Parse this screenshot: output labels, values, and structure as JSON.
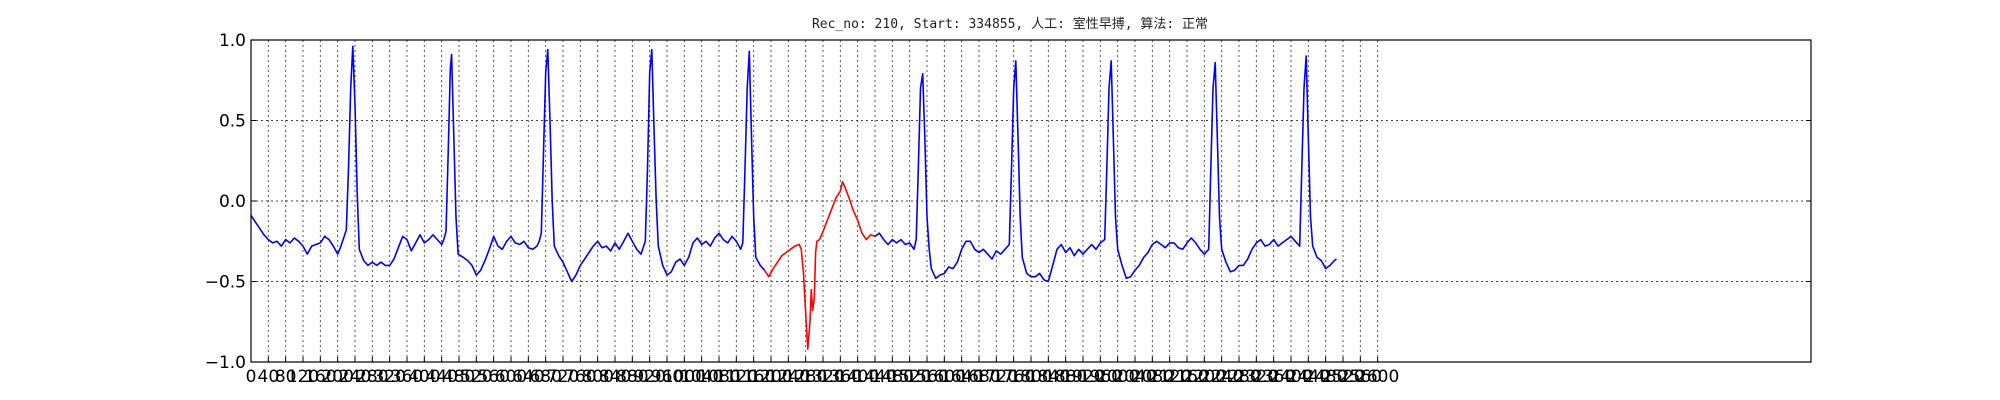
{
  "chart_data": {
    "type": "line",
    "title": "Rec_no: 210, Start: 334855, 人工: 室性早搏, 算法: 正常",
    "xlabel": "",
    "ylabel": "",
    "xlim": [
      0,
      3600
    ],
    "ylim": [
      -1.0,
      1.0
    ],
    "grid": true,
    "legend": "none",
    "y_ticks": [
      -1.0,
      -0.5,
      0.0,
      0.5,
      1.0
    ],
    "y_tick_labels": [
      "−1.0",
      "−0.5",
      "0.0",
      "0.5",
      "1.0"
    ],
    "x_tick_step": 40,
    "x_tick_last": 2600,
    "x_tick_labels_shown": [
      "0",
      "40",
      "80",
      "120",
      "160",
      "200",
      "240",
      "280",
      "320",
      "360",
      "400",
      "440",
      "480",
      "520",
      "560",
      "600",
      "640",
      "680",
      "720",
      "760",
      "800",
      "840",
      "880",
      "920",
      "960",
      "1000",
      "1040",
      "1080",
      "1120",
      "1160",
      "1200",
      "1240",
      "1280",
      "1320",
      "1360",
      "1400",
      "1440",
      "1480",
      "1520",
      "1560",
      "1600",
      "1640",
      "1680",
      "1720",
      "1760",
      "1800",
      "1840",
      "1880",
      "1920",
      "1960",
      "2000",
      "2040",
      "2080",
      "2120",
      "2160",
      "2200",
      "2240",
      "2280",
      "2320",
      "2360",
      "2400",
      "2440",
      "2480",
      "2520",
      "2560",
      "2600"
    ],
    "colors": {
      "normal": "#0000ff",
      "highlight": "#ff0000"
    },
    "series": [
      {
        "color": "#0000ff",
        "points": [
          [
            0,
            -0.09
          ],
          [
            10,
            -0.13
          ],
          [
            20,
            -0.17
          ],
          [
            30,
            -0.21
          ],
          [
            40,
            -0.24
          ],
          [
            50,
            -0.26
          ],
          [
            60,
            -0.25
          ],
          [
            70,
            -0.28
          ],
          [
            80,
            -0.24
          ],
          [
            90,
            -0.26
          ],
          [
            100,
            -0.23
          ],
          [
            110,
            -0.25
          ],
          [
            120,
            -0.28
          ],
          [
            130,
            -0.33
          ],
          [
            140,
            -0.28
          ],
          [
            150,
            -0.27
          ],
          [
            160,
            -0.26
          ],
          [
            170,
            -0.22
          ],
          [
            180,
            -0.24
          ],
          [
            190,
            -0.28
          ],
          [
            200,
            -0.33
          ],
          [
            205,
            -0.3
          ],
          [
            210,
            -0.26
          ],
          [
            215,
            -0.22
          ],
          [
            220,
            -0.18
          ],
          [
            225,
            0.2
          ],
          [
            230,
            0.7
          ],
          [
            235,
            0.96
          ],
          [
            240,
            0.6
          ],
          [
            245,
            0.05
          ],
          [
            250,
            -0.3
          ],
          [
            260,
            -0.37
          ],
          [
            270,
            -0.4
          ],
          [
            280,
            -0.38
          ],
          [
            290,
            -0.4
          ],
          [
            300,
            -0.38
          ],
          [
            310,
            -0.4
          ],
          [
            320,
            -0.4
          ],
          [
            330,
            -0.36
          ],
          [
            340,
            -0.29
          ],
          [
            350,
            -0.22
          ],
          [
            360,
            -0.24
          ],
          [
            370,
            -0.31
          ],
          [
            380,
            -0.26
          ],
          [
            390,
            -0.21
          ],
          [
            400,
            -0.26
          ],
          [
            410,
            -0.24
          ],
          [
            420,
            -0.21
          ],
          [
            430,
            -0.24
          ],
          [
            440,
            -0.27
          ],
          [
            445,
            -0.24
          ],
          [
            450,
            -0.19
          ],
          [
            455,
            0.3
          ],
          [
            460,
            0.82
          ],
          [
            463,
            0.91
          ],
          [
            468,
            0.4
          ],
          [
            473,
            -0.1
          ],
          [
            478,
            -0.33
          ],
          [
            490,
            -0.35
          ],
          [
            500,
            -0.37
          ],
          [
            510,
            -0.4
          ],
          [
            520,
            -0.46
          ],
          [
            530,
            -0.43
          ],
          [
            540,
            -0.37
          ],
          [
            550,
            -0.3
          ],
          [
            560,
            -0.22
          ],
          [
            570,
            -0.28
          ],
          [
            580,
            -0.3
          ],
          [
            590,
            -0.25
          ],
          [
            600,
            -0.22
          ],
          [
            610,
            -0.26
          ],
          [
            620,
            -0.27
          ],
          [
            630,
            -0.25
          ],
          [
            640,
            -0.29
          ],
          [
            650,
            -0.3
          ],
          [
            660,
            -0.28
          ],
          [
            665,
            -0.25
          ],
          [
            670,
            -0.2
          ],
          [
            675,
            0.3
          ],
          [
            680,
            0.8
          ],
          [
            685,
            0.94
          ],
          [
            690,
            0.5
          ],
          [
            695,
            0.0
          ],
          [
            700,
            -0.28
          ],
          [
            710,
            -0.34
          ],
          [
            720,
            -0.38
          ],
          [
            730,
            -0.44
          ],
          [
            740,
            -0.5
          ],
          [
            750,
            -0.46
          ],
          [
            760,
            -0.4
          ],
          [
            770,
            -0.36
          ],
          [
            780,
            -0.32
          ],
          [
            790,
            -0.28
          ],
          [
            800,
            -0.25
          ],
          [
            810,
            -0.29
          ],
          [
            820,
            -0.28
          ],
          [
            830,
            -0.31
          ],
          [
            840,
            -0.26
          ],
          [
            850,
            -0.3
          ],
          [
            860,
            -0.25
          ],
          [
            870,
            -0.2
          ],
          [
            880,
            -0.25
          ],
          [
            890,
            -0.3
          ],
          [
            900,
            -0.33
          ],
          [
            910,
            -0.25
          ],
          [
            915,
            0.2
          ],
          [
            920,
            0.8
          ],
          [
            925,
            0.94
          ],
          [
            930,
            0.45
          ],
          [
            935,
            0.0
          ],
          [
            940,
            -0.28
          ],
          [
            950,
            -0.4
          ],
          [
            960,
            -0.46
          ],
          [
            970,
            -0.44
          ],
          [
            980,
            -0.38
          ],
          [
            990,
            -0.36
          ],
          [
            1000,
            -0.4
          ],
          [
            1010,
            -0.35
          ],
          [
            1020,
            -0.26
          ],
          [
            1030,
            -0.23
          ],
          [
            1040,
            -0.27
          ],
          [
            1050,
            -0.25
          ],
          [
            1060,
            -0.28
          ],
          [
            1070,
            -0.23
          ],
          [
            1080,
            -0.2
          ],
          [
            1090,
            -0.24
          ],
          [
            1100,
            -0.26
          ],
          [
            1110,
            -0.22
          ],
          [
            1120,
            -0.25
          ],
          [
            1130,
            -0.3
          ],
          [
            1135,
            -0.26
          ],
          [
            1140,
            0.2
          ],
          [
            1145,
            0.7
          ],
          [
            1150,
            0.93
          ],
          [
            1155,
            0.4
          ],
          [
            1160,
            -0.1
          ],
          [
            1165,
            -0.35
          ],
          [
            1175,
            -0.4
          ],
          [
            1185,
            -0.43
          ]
        ]
      },
      {
        "color": "#ff0000",
        "points": [
          [
            1185,
            -0.43
          ],
          [
            1195,
            -0.47
          ],
          [
            1205,
            -0.42
          ],
          [
            1215,
            -0.38
          ],
          [
            1225,
            -0.34
          ],
          [
            1235,
            -0.32
          ],
          [
            1245,
            -0.3
          ],
          [
            1255,
            -0.28
          ],
          [
            1265,
            -0.27
          ],
          [
            1270,
            -0.3
          ],
          [
            1275,
            -0.45
          ],
          [
            1280,
            -0.7
          ],
          [
            1285,
            -0.92
          ],
          [
            1290,
            -0.75
          ],
          [
            1293,
            -0.55
          ],
          [
            1296,
            -0.68
          ],
          [
            1300,
            -0.6
          ],
          [
            1303,
            -0.32
          ],
          [
            1306,
            -0.25
          ],
          [
            1312,
            -0.24
          ],
          [
            1320,
            -0.19
          ],
          [
            1330,
            -0.12
          ],
          [
            1340,
            -0.05
          ],
          [
            1350,
            0.02
          ],
          [
            1360,
            0.06
          ],
          [
            1365,
            0.12
          ],
          [
            1370,
            0.09
          ],
          [
            1380,
            0.02
          ],
          [
            1390,
            -0.06
          ],
          [
            1400,
            -0.12
          ],
          [
            1410,
            -0.2
          ],
          [
            1420,
            -0.24
          ],
          [
            1430,
            -0.21
          ],
          [
            1440,
            -0.22
          ]
        ]
      },
      {
        "color": "#0000ff",
        "points": [
          [
            1440,
            -0.22
          ],
          [
            1450,
            -0.2
          ],
          [
            1460,
            -0.24
          ],
          [
            1470,
            -0.27
          ],
          [
            1480,
            -0.24
          ],
          [
            1490,
            -0.26
          ],
          [
            1500,
            -0.24
          ],
          [
            1510,
            -0.27
          ],
          [
            1520,
            -0.26
          ],
          [
            1530,
            -0.3
          ],
          [
            1535,
            -0.24
          ],
          [
            1540,
            0.2
          ],
          [
            1545,
            0.7
          ],
          [
            1550,
            0.79
          ],
          [
            1555,
            0.4
          ],
          [
            1560,
            -0.1
          ],
          [
            1565,
            -0.3
          ],
          [
            1570,
            -0.42
          ],
          [
            1580,
            -0.48
          ],
          [
            1590,
            -0.46
          ],
          [
            1600,
            -0.45
          ],
          [
            1610,
            -0.41
          ],
          [
            1620,
            -0.42
          ],
          [
            1630,
            -0.38
          ],
          [
            1640,
            -0.3
          ],
          [
            1650,
            -0.25
          ],
          [
            1660,
            -0.25
          ],
          [
            1670,
            -0.3
          ],
          [
            1680,
            -0.32
          ],
          [
            1690,
            -0.3
          ],
          [
            1700,
            -0.33
          ],
          [
            1710,
            -0.36
          ],
          [
            1720,
            -0.31
          ],
          [
            1730,
            -0.33
          ],
          [
            1740,
            -0.3
          ],
          [
            1750,
            -0.27
          ],
          [
            1755,
            0.2
          ],
          [
            1760,
            0.7
          ],
          [
            1765,
            0.87
          ],
          [
            1770,
            0.4
          ],
          [
            1775,
            -0.1
          ],
          [
            1780,
            -0.35
          ],
          [
            1790,
            -0.45
          ],
          [
            1800,
            -0.47
          ],
          [
            1810,
            -0.47
          ],
          [
            1820,
            -0.45
          ],
          [
            1830,
            -0.49
          ],
          [
            1840,
            -0.5
          ],
          [
            1850,
            -0.4
          ],
          [
            1860,
            -0.3
          ],
          [
            1870,
            -0.27
          ],
          [
            1880,
            -0.32
          ],
          [
            1890,
            -0.29
          ],
          [
            1900,
            -0.34
          ],
          [
            1910,
            -0.3
          ],
          [
            1920,
            -0.33
          ],
          [
            1930,
            -0.3
          ],
          [
            1940,
            -0.27
          ],
          [
            1950,
            -0.3
          ],
          [
            1960,
            -0.26
          ],
          [
            1970,
            -0.24
          ],
          [
            1975,
            0.2
          ],
          [
            1980,
            0.7
          ],
          [
            1985,
            0.87
          ],
          [
            1990,
            0.4
          ],
          [
            1995,
            -0.1
          ],
          [
            2000,
            -0.3
          ],
          [
            2010,
            -0.4
          ],
          [
            2020,
            -0.48
          ],
          [
            2030,
            -0.47
          ],
          [
            2040,
            -0.43
          ],
          [
            2050,
            -0.4
          ],
          [
            2060,
            -0.35
          ],
          [
            2070,
            -0.32
          ],
          [
            2080,
            -0.27
          ],
          [
            2090,
            -0.25
          ],
          [
            2100,
            -0.27
          ],
          [
            2110,
            -0.29
          ],
          [
            2120,
            -0.26
          ],
          [
            2130,
            -0.26
          ],
          [
            2140,
            -0.29
          ],
          [
            2150,
            -0.3
          ],
          [
            2160,
            -0.26
          ],
          [
            2170,
            -0.23
          ],
          [
            2180,
            -0.26
          ],
          [
            2190,
            -0.3
          ],
          [
            2200,
            -0.33
          ],
          [
            2210,
            -0.3
          ],
          [
            2215,
            0.2
          ],
          [
            2220,
            0.7
          ],
          [
            2225,
            0.86
          ],
          [
            2230,
            0.4
          ],
          [
            2235,
            -0.1
          ],
          [
            2240,
            -0.3
          ],
          [
            2250,
            -0.38
          ],
          [
            2260,
            -0.44
          ],
          [
            2270,
            -0.43
          ],
          [
            2280,
            -0.4
          ],
          [
            2290,
            -0.4
          ],
          [
            2300,
            -0.36
          ],
          [
            2310,
            -0.3
          ],
          [
            2320,
            -0.26
          ],
          [
            2330,
            -0.24
          ],
          [
            2340,
            -0.28
          ],
          [
            2350,
            -0.27
          ],
          [
            2360,
            -0.24
          ],
          [
            2370,
            -0.28
          ],
          [
            2380,
            -0.26
          ],
          [
            2390,
            -0.24
          ],
          [
            2400,
            -0.22
          ],
          [
            2410,
            -0.25
          ],
          [
            2420,
            -0.28
          ],
          [
            2425,
            0.2
          ],
          [
            2430,
            0.7
          ],
          [
            2435,
            0.9
          ],
          [
            2440,
            0.4
          ],
          [
            2445,
            -0.1
          ],
          [
            2450,
            -0.28
          ],
          [
            2460,
            -0.35
          ],
          [
            2470,
            -0.37
          ],
          [
            2480,
            -0.42
          ],
          [
            2490,
            -0.4
          ],
          [
            2500,
            -0.37
          ],
          [
            2505,
            -0.36
          ]
        ]
      }
    ]
  }
}
